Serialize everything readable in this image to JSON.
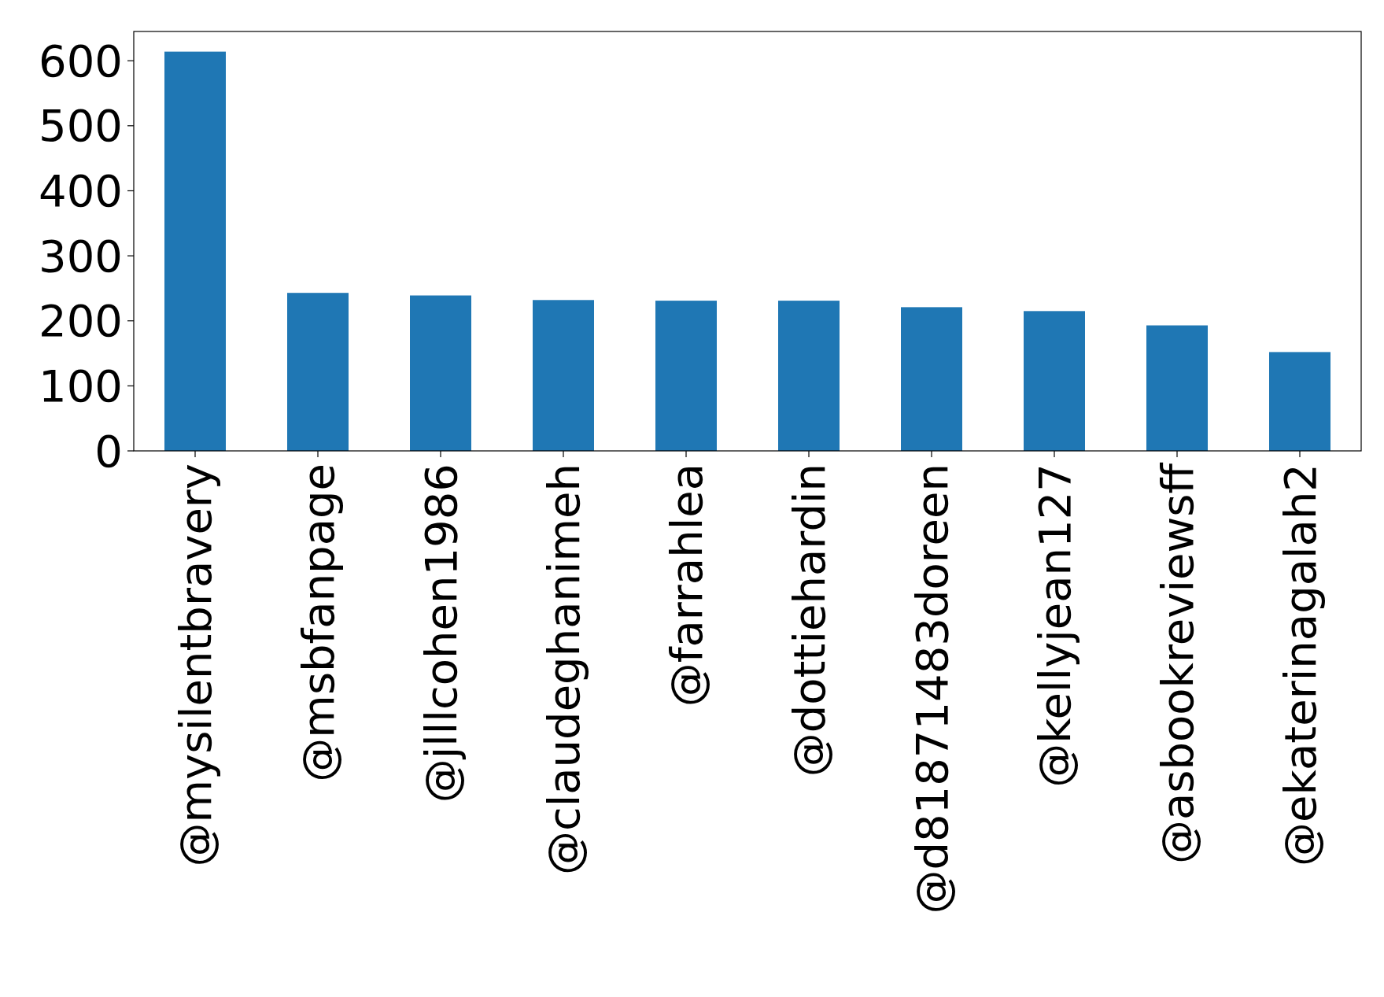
{
  "chart_data": {
    "type": "bar",
    "categories": [
      "@mysilentbravery",
      "@msbfanpage",
      "@jlllcohen1986",
      "@claudeghanimeh",
      "@farrahlea",
      "@dottiehardin",
      "@d81871483doreen",
      "@kellyjean127",
      "@asbookreviewsff",
      "@ekaterinagalah2"
    ],
    "values": [
      614,
      243,
      239,
      232,
      231,
      231,
      221,
      215,
      193,
      152
    ],
    "color": "#1f77b4",
    "ylim": [
      0,
      645
    ],
    "yticks": [
      0,
      100,
      200,
      300,
      400,
      500,
      600
    ],
    "grid": false
  }
}
